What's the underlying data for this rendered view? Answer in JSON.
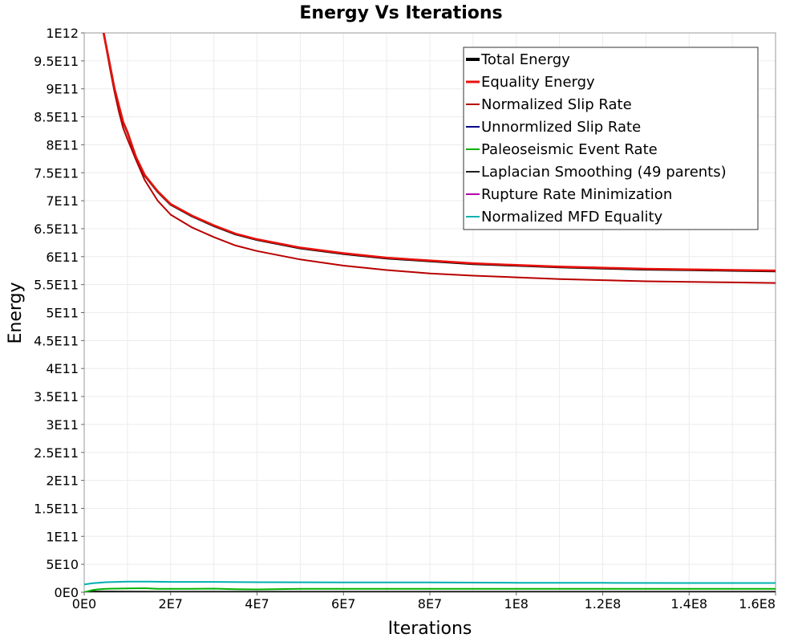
{
  "chart_data": {
    "type": "line",
    "title": "Energy Vs Iterations",
    "xlabel": "Iterations",
    "ylabel": "Energy",
    "xlim": [
      0,
      160000000
    ],
    "ylim": [
      0,
      1000000000000
    ],
    "grid": true,
    "legend_position": "top-right",
    "x_ticks": [
      {
        "value": 0,
        "label": "0E0"
      },
      {
        "value": 20000000,
        "label": "2E7"
      },
      {
        "value": 40000000,
        "label": "4E7"
      },
      {
        "value": 60000000,
        "label": "6E7"
      },
      {
        "value": 80000000,
        "label": "8E7"
      },
      {
        "value": 100000000,
        "label": "1E8"
      },
      {
        "value": 120000000,
        "label": "1.2E8"
      },
      {
        "value": 140000000,
        "label": "1.4E8"
      },
      {
        "value": 160000000,
        "label": "1.6E8"
      }
    ],
    "y_ticks": [
      {
        "value": 0,
        "label": "0E0"
      },
      {
        "value": 50000000000,
        "label": "5E10"
      },
      {
        "value": 100000000000,
        "label": "1E11"
      },
      {
        "value": 150000000000,
        "label": "1.5E11"
      },
      {
        "value": 200000000000,
        "label": "2E11"
      },
      {
        "value": 250000000000,
        "label": "2.5E11"
      },
      {
        "value": 300000000000,
        "label": "3E11"
      },
      {
        "value": 350000000000,
        "label": "3.5E11"
      },
      {
        "value": 400000000000,
        "label": "4E11"
      },
      {
        "value": 450000000000,
        "label": "4.5E11"
      },
      {
        "value": 500000000000,
        "label": "5E11"
      },
      {
        "value": 550000000000,
        "label": "5.5E11"
      },
      {
        "value": 600000000000,
        "label": "6E11"
      },
      {
        "value": 650000000000,
        "label": "6.5E11"
      },
      {
        "value": 700000000000,
        "label": "7E11"
      },
      {
        "value": 750000000000,
        "label": "7.5E11"
      },
      {
        "value": 800000000000,
        "label": "8E11"
      },
      {
        "value": 850000000000,
        "label": "8.5E11"
      },
      {
        "value": 900000000000,
        "label": "9E11"
      },
      {
        "value": 950000000000,
        "label": "9.5E11"
      },
      {
        "value": 1000000000000,
        "label": "1E12"
      }
    ],
    "series": [
      {
        "name": "Total Energy",
        "color": "#000000",
        "legend_width": 4,
        "x": [
          4500000,
          5000000,
          6000000,
          7000000,
          8000000,
          9000000,
          10000000,
          12000000,
          14000000,
          17000000,
          20000000,
          25000000,
          30000000,
          35000000,
          40000000,
          50000000,
          60000000,
          70000000,
          80000000,
          90000000,
          100000000,
          110000000,
          120000000,
          130000000,
          140000000,
          150000000,
          160000000
        ],
        "y": [
          1000000000000,
          980000000000,
          940000000000,
          900000000000,
          870000000000,
          840000000000,
          822000000000,
          777000000000,
          745000000000,
          716000000000,
          693000000000,
          672000000000,
          655000000000,
          640000000000,
          630000000000,
          615000000000,
          605000000000,
          597000000000,
          592000000000,
          587000000000,
          584000000000,
          581000000000,
          579000000000,
          577000000000,
          576000000000,
          575000000000,
          574000000000
        ]
      },
      {
        "name": "Equality Energy",
        "color": "#e8120c",
        "legend_width": 3,
        "x": [
          4500000,
          5000000,
          6000000,
          7000000,
          8000000,
          9000000,
          10000000,
          12000000,
          14000000,
          17000000,
          20000000,
          25000000,
          30000000,
          35000000,
          40000000,
          50000000,
          60000000,
          70000000,
          80000000,
          90000000,
          100000000,
          110000000,
          120000000,
          130000000,
          140000000,
          150000000,
          160000000
        ],
        "y": [
          1000000000000,
          980000000000,
          941000000000,
          901000000000,
          871000000000,
          841000000000,
          823000000000,
          778000000000,
          746000000000,
          717000000000,
          694000000000,
          673000000000,
          656000000000,
          641000000000,
          631000000000,
          616000000000,
          606000000000,
          598000000000,
          593000000000,
          588000000000,
          585000000000,
          582000000000,
          580000000000,
          578000000000,
          577000000000,
          576000000000,
          575000000000
        ]
      },
      {
        "name": "Normalized Slip Rate",
        "color": "#b80000",
        "legend_width": 2,
        "x": [
          4500000,
          5000000,
          6000000,
          7000000,
          8000000,
          9000000,
          10000000,
          12000000,
          14000000,
          17000000,
          20000000,
          25000000,
          30000000,
          35000000,
          40000000,
          50000000,
          60000000,
          70000000,
          80000000,
          90000000,
          100000000,
          110000000,
          120000000,
          130000000,
          140000000,
          150000000,
          160000000
        ],
        "y": [
          1000000000000,
          978000000000,
          935000000000,
          895000000000,
          860000000000,
          830000000000,
          810000000000,
          773000000000,
          737000000000,
          700000000000,
          675000000000,
          652000000000,
          635000000000,
          620000000000,
          610000000000,
          595000000000,
          584000000000,
          576000000000,
          570000000000,
          566000000000,
          563000000000,
          560000000000,
          558000000000,
          556000000000,
          555000000000,
          554000000000,
          553000000000
        ]
      },
      {
        "name": "Unnormlized Slip Rate",
        "color": "#00008b",
        "legend_width": 2,
        "x": [
          0,
          20000000,
          40000000,
          60000000,
          80000000,
          100000000,
          120000000,
          140000000,
          160000000
        ],
        "y": [
          0,
          0,
          0,
          0,
          0,
          0,
          0,
          0,
          0
        ]
      },
      {
        "name": "Paleoseismic Event Rate",
        "color": "#00b000",
        "legend_width": 2,
        "x": [
          0,
          1000000,
          2000000,
          3000000,
          5000000,
          7000000,
          10000000,
          14000000,
          17000000,
          20000000,
          25000000,
          30000000,
          35000000,
          40000000,
          50000000,
          60000000,
          80000000,
          100000000,
          120000000,
          140000000,
          160000000
        ],
        "y": [
          0,
          2000000000,
          4000000000,
          5000000000,
          6000000000,
          6500000000,
          6800000000,
          7200000000,
          6000000000,
          6200000000,
          6000000000,
          6500000000,
          5500000000,
          5000000000,
          6000000000,
          6000000000,
          6000000000,
          6000000000,
          6000000000,
          6000000000,
          6000000000
        ]
      },
      {
        "name": "Laplacian Smoothing (49 parents)",
        "color": "#202020",
        "legend_width": 2,
        "x": [
          0,
          1000000,
          2000000,
          3000000,
          5000000,
          10000000,
          20000000,
          40000000,
          60000000,
          80000000,
          100000000,
          120000000,
          140000000,
          160000000
        ],
        "y": [
          0,
          1000000000,
          1500000000,
          1500000000,
          1400000000,
          1300000000,
          1200000000,
          1200000000,
          1200000000,
          1200000000,
          1200000000,
          1200000000,
          1200000000,
          1200000000
        ]
      },
      {
        "name": "Rupture Rate Minimization",
        "color": "#b000b0",
        "legend_width": 2,
        "x": [
          0,
          20000000,
          40000000,
          60000000,
          80000000,
          100000000,
          120000000,
          140000000,
          160000000
        ],
        "y": [
          0,
          0,
          0,
          0,
          0,
          0,
          0,
          0,
          0
        ]
      },
      {
        "name": "Normalized MFD Equality",
        "color": "#00b0b0",
        "legend_width": 2,
        "x": [
          0,
          2000000,
          5000000,
          10000000,
          15000000,
          20000000,
          30000000,
          40000000,
          60000000,
          80000000,
          100000000,
          120000000,
          140000000,
          160000000
        ],
        "y": [
          14000000000,
          16000000000,
          18000000000,
          19000000000,
          19000000000,
          18500000000,
          18500000000,
          18000000000,
          17500000000,
          17500000000,
          17000000000,
          16800000000,
          16500000000,
          16500000000
        ]
      }
    ]
  }
}
